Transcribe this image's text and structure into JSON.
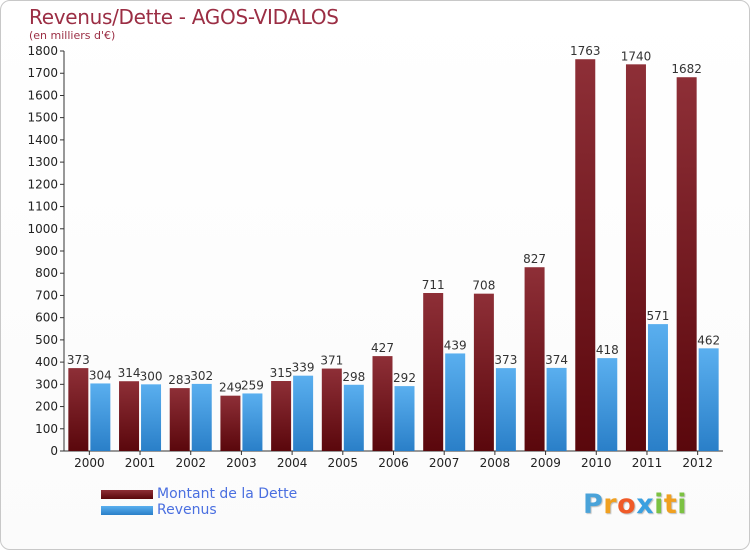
{
  "title": "Revenus/Dette - AGOS-VIDALOS",
  "subtitle": "(en milliers d'€)",
  "chart_data": {
    "type": "bar",
    "title": "Revenus/Dette - AGOS-VIDALOS",
    "subtitle": "(en milliers d'€)",
    "categories": [
      "2000",
      "2001",
      "2002",
      "2003",
      "2004",
      "2005",
      "2006",
      "2007",
      "2008",
      "2009",
      "2010",
      "2011",
      "2012"
    ],
    "series": [
      {
        "name": "Montant de la Dette",
        "color": "#7a1a22",
        "values": [
          373,
          314,
          283,
          249,
          315,
          371,
          427,
          711,
          708,
          827,
          1763,
          1740,
          1682
        ]
      },
      {
        "name": "Revenus",
        "color": "#3a8fd8",
        "values": [
          304,
          300,
          302,
          259,
          339,
          298,
          292,
          439,
          373,
          374,
          418,
          571,
          462
        ]
      }
    ],
    "ylim": [
      0,
      1800
    ],
    "yticks": [
      0,
      100,
      200,
      300,
      400,
      500,
      600,
      700,
      800,
      900,
      1000,
      1100,
      1200,
      1300,
      1400,
      1500,
      1600,
      1700,
      1800
    ],
    "grid": false,
    "data_labels": true,
    "legend_position": "bottom-left"
  },
  "legend": [
    {
      "label": "Montant de la Dette",
      "color": "#6a0f14"
    },
    {
      "label": "Revenus",
      "color": "#3a8fd8"
    }
  ],
  "logo": {
    "letters": [
      "P",
      "r",
      "o",
      "x",
      "i",
      "t",
      "i"
    ],
    "colors": [
      "#4aa3d9",
      "#f0a020",
      "#f05a28",
      "#3aa0e0",
      "#7cc242",
      "#f0a020",
      "#7cc242"
    ]
  }
}
